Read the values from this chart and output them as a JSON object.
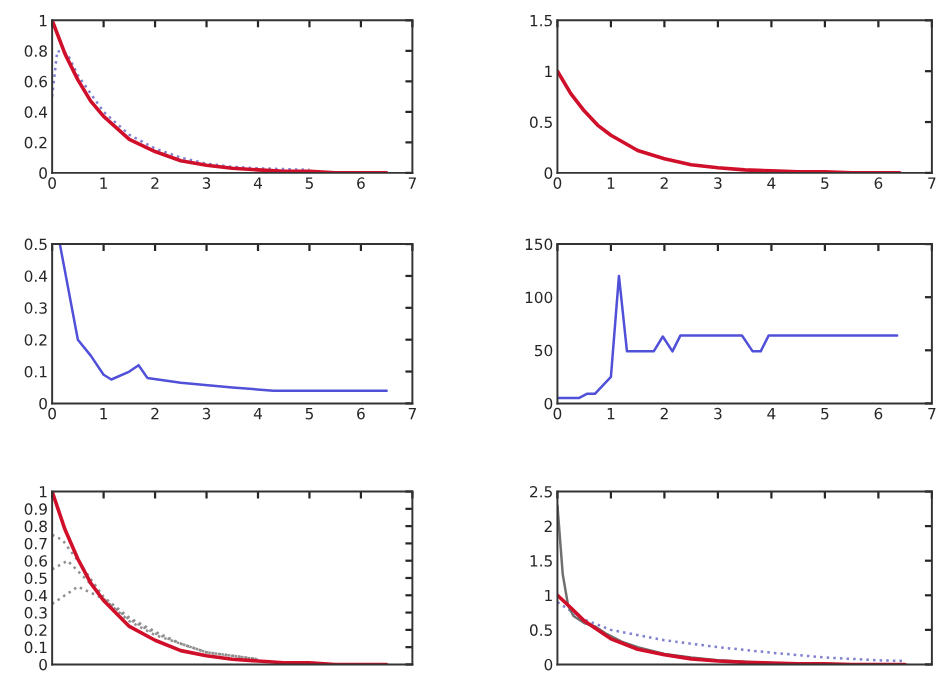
{
  "chart_data": [
    {
      "type": "line",
      "xlim": [
        0,
        7
      ],
      "xticks": [
        0,
        1,
        2,
        3,
        4,
        5,
        6,
        7
      ],
      "ylim": [
        0,
        1
      ],
      "yticks": [
        0,
        0.2,
        0.4,
        0.6,
        0.8,
        1
      ],
      "grid": false,
      "legend": false,
      "series": [
        {
          "color": "#8080d0",
          "line_style": "dotted",
          "x": [
            0,
            0.1,
            0.3,
            0.5,
            1,
            1.5,
            2,
            2.5,
            3,
            3.5,
            4,
            5
          ],
          "values": [
            0.5,
            0.8,
            0.78,
            0.64,
            0.4,
            0.25,
            0.16,
            0.1,
            0.06,
            0.04,
            0.03,
            0.02
          ]
        },
        {
          "color": "#d0102a",
          "line_style": "solid",
          "x": [
            0,
            0.25,
            0.5,
            0.75,
            1,
            1.5,
            2,
            2.5,
            3,
            3.5,
            4,
            4.5,
            5,
            5.5,
            6,
            6.5
          ],
          "values": [
            1,
            0.78,
            0.61,
            0.47,
            0.37,
            0.22,
            0.14,
            0.08,
            0.05,
            0.03,
            0.02,
            0.01,
            0.01,
            0,
            0,
            0
          ]
        }
      ]
    },
    {
      "type": "line",
      "xlim": [
        0,
        7
      ],
      "xticks": [
        0,
        1,
        2,
        3,
        4,
        5,
        6,
        7
      ],
      "ylim": [
        0,
        1.5
      ],
      "yticks": [
        0,
        0.5,
        1,
        1.5
      ],
      "grid": false,
      "legend": false,
      "series": [
        {
          "color": "#d0102a",
          "line_style": "solid",
          "x": [
            0,
            0.25,
            0.5,
            0.75,
            1,
            1.5,
            2,
            2.5,
            3,
            3.5,
            4,
            4.5,
            5,
            5.5,
            6,
            6.4
          ],
          "values": [
            1,
            0.78,
            0.61,
            0.47,
            0.37,
            0.22,
            0.14,
            0.08,
            0.05,
            0.03,
            0.02,
            0.01,
            0.01,
            0,
            0,
            0
          ]
        }
      ]
    },
    {
      "type": "line",
      "xlim": [
        0,
        7
      ],
      "xticks": [
        0,
        1,
        2,
        3,
        4,
        5,
        6,
        7
      ],
      "ylim": [
        0,
        0.5
      ],
      "yticks": [
        0,
        0.1,
        0.2,
        0.3,
        0.4,
        0.5
      ],
      "grid": false,
      "legend": false,
      "series": [
        {
          "color": "#5050d8",
          "line_style": "solid",
          "x": [
            0.15,
            0.5,
            0.75,
            1,
            1.15,
            1.5,
            1.68,
            1.85,
            2.5,
            3.5,
            4.3,
            6.5
          ],
          "values": [
            0.5,
            0.2,
            0.15,
            0.09,
            0.075,
            0.1,
            0.12,
            0.08,
            0.065,
            0.05,
            0.04,
            0.04
          ]
        }
      ]
    },
    {
      "type": "line",
      "xlim": [
        0,
        7
      ],
      "xticks": [
        0,
        1,
        2,
        3,
        4,
        5,
        6,
        7
      ],
      "ylim": [
        0,
        150
      ],
      "yticks": [
        0,
        50,
        100,
        150
      ],
      "grid": false,
      "legend": false,
      "series": [
        {
          "color": "#5050d8",
          "line_style": "solid",
          "x": [
            0,
            0.4,
            0.55,
            0.7,
            1.0,
            1.15,
            1.3,
            1.8,
            1.97,
            2.15,
            2.3,
            3.45,
            3.65,
            3.8,
            3.95,
            6.35
          ],
          "values": [
            5,
            5,
            9,
            9,
            25,
            120,
            49,
            49,
            63,
            49,
            64,
            64,
            49,
            49,
            64,
            64
          ]
        }
      ]
    },
    {
      "type": "line",
      "xlim": [
        0,
        7
      ],
      "xticks": [
        {
          "value": 0,
          "label": null
        },
        {
          "value": 1,
          "label": null
        },
        {
          "value": 2,
          "label": null
        },
        {
          "value": 3,
          "label": null
        },
        {
          "value": 4,
          "label": null
        },
        {
          "value": 5,
          "label": null
        },
        {
          "value": 6,
          "label": null
        },
        {
          "value": 7,
          "label": null
        }
      ],
      "ylim": [
        0,
        1
      ],
      "yticks": [
        0,
        0.1,
        0.2,
        0.3,
        0.4,
        0.5,
        0.6,
        0.7,
        0.8,
        0.9,
        1
      ],
      "tick_labels": "y",
      "grid": false,
      "legend": false,
      "series": [
        {
          "color": "#909090",
          "line_style": "dotted",
          "x": [
            0,
            0.5,
            1,
            1.5,
            2,
            2.5,
            3,
            4
          ],
          "values": [
            0.35,
            0.45,
            0.38,
            0.25,
            0.17,
            0.12,
            0.07,
            0.03
          ]
        },
        {
          "color": "#909090",
          "line_style": "dotted",
          "x": [
            0,
            0.3,
            0.7,
            1,
            1.5,
            2,
            2.5,
            3,
            4
          ],
          "values": [
            0.55,
            0.6,
            0.48,
            0.38,
            0.26,
            0.18,
            0.12,
            0.07,
            0.03
          ]
        },
        {
          "color": "#909090",
          "line_style": "dotted",
          "x": [
            0,
            0.2,
            0.5,
            1,
            1.5,
            2,
            2.5,
            3,
            4
          ],
          "values": [
            0.75,
            0.72,
            0.6,
            0.39,
            0.27,
            0.19,
            0.12,
            0.07,
            0.03
          ]
        },
        {
          "color": "#d0102a",
          "line_style": "solid",
          "x": [
            0,
            0.25,
            0.5,
            0.75,
            1,
            1.5,
            2,
            2.5,
            3,
            3.5,
            4,
            4.5,
            5,
            5.5,
            6,
            6.5
          ],
          "values": [
            1,
            0.78,
            0.61,
            0.47,
            0.37,
            0.22,
            0.14,
            0.08,
            0.05,
            0.03,
            0.02,
            0.01,
            0.01,
            0,
            0,
            0
          ]
        }
      ]
    },
    {
      "type": "line",
      "xlim": [
        0,
        7
      ],
      "xticks": [
        {
          "value": 0,
          "label": null
        },
        {
          "value": 1,
          "label": null
        },
        {
          "value": 2,
          "label": null
        },
        {
          "value": 3,
          "label": null
        },
        {
          "value": 4,
          "label": null
        },
        {
          "value": 5,
          "label": null
        },
        {
          "value": 6,
          "label": null
        },
        {
          "value": 7,
          "label": null
        }
      ],
      "ylim": [
        0,
        2.5
      ],
      "yticks": [
        0,
        0.5,
        1,
        1.5,
        2,
        2.5
      ],
      "tick_labels": "y",
      "grid": false,
      "legend": false,
      "series": [
        {
          "color": "#8080d0",
          "line_style": "dotted",
          "x": [
            0,
            0.5,
            1,
            2,
            3,
            4,
            5,
            6,
            6.5
          ],
          "values": [
            0.9,
            0.65,
            0.5,
            0.35,
            0.25,
            0.17,
            0.1,
            0.06,
            0.05
          ]
        },
        {
          "color": "#707070",
          "line_style": "solid",
          "x": [
            0,
            0.1,
            0.2,
            0.3,
            0.5,
            0.7,
            0.9,
            1.2,
            1.5,
            2,
            2.5,
            3,
            4
          ],
          "values": [
            2.3,
            1.3,
            0.85,
            0.7,
            0.6,
            0.55,
            0.45,
            0.33,
            0.25,
            0.15,
            0.1,
            0.06,
            0.02
          ]
        },
        {
          "color": "#d0102a",
          "line_style": "solid",
          "x": [
            0,
            0.25,
            0.5,
            0.75,
            1,
            1.5,
            2,
            2.5,
            3,
            3.5,
            4,
            4.5,
            5,
            5.5,
            6,
            6.5
          ],
          "values": [
            1,
            0.82,
            0.63,
            0.5,
            0.37,
            0.22,
            0.14,
            0.08,
            0.05,
            0.03,
            0.02,
            0.01,
            0.01,
            0,
            0,
            0
          ]
        }
      ]
    }
  ]
}
